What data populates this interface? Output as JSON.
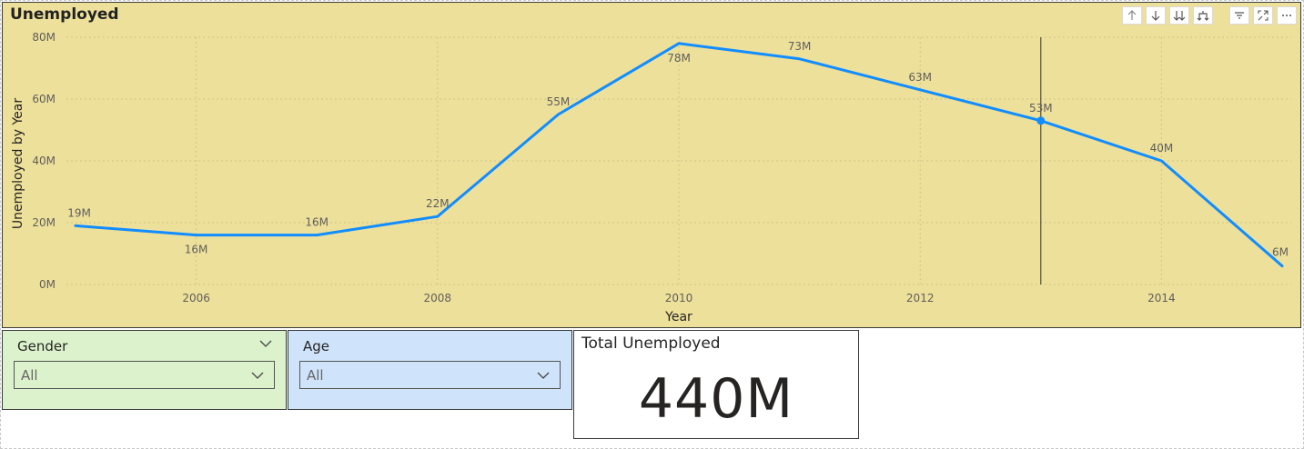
{
  "chart": {
    "title": "Unemployed",
    "toolbar": {
      "drill_up": "↑",
      "drill_down": "↓",
      "expand_all": "⇊",
      "expand_hierarchy": "⑂",
      "filter": "≡",
      "focus_mode": "⤢",
      "more_options": "⋯"
    }
  },
  "chart_data": {
    "type": "line",
    "x": [
      2005,
      2006,
      2007,
      2008,
      2009,
      2010,
      2011,
      2012,
      2013,
      2014,
      2015
    ],
    "values": [
      19,
      16,
      16,
      22,
      55,
      78,
      73,
      63,
      53,
      40,
      6
    ],
    "data_labels": [
      "19M",
      "16M",
      "16M",
      "22M",
      "55M",
      "78M",
      "73M",
      "63M",
      "53M",
      "40M",
      "6M"
    ],
    "xticks": [
      2006,
      2008,
      2010,
      2012,
      2014
    ],
    "yticks": [
      0,
      20,
      40,
      60,
      80
    ],
    "ytick_labels": [
      "0M",
      "20M",
      "40M",
      "60M",
      "80M"
    ],
    "xlabel": "Year",
    "ylabel": "Unemployed by Year",
    "ylim": [
      0,
      80
    ],
    "grid": true,
    "highlight_x": 2013,
    "line_color": "#118dff",
    "background": "#ede09a"
  },
  "slicers": {
    "gender": {
      "title": "Gender",
      "value": "All"
    },
    "age": {
      "title": "Age",
      "value": "All"
    }
  },
  "card": {
    "title": "Total Unemployed",
    "value": "440M"
  }
}
